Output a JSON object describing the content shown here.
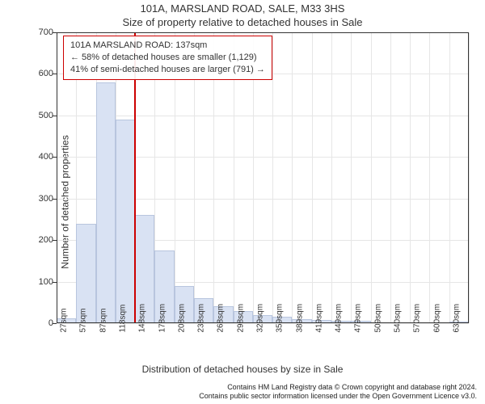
{
  "title_main": "101A, MARSLAND ROAD, SALE, M33 3HS",
  "title_sub": "Size of property relative to detached houses in Sale",
  "ylabel": "Number of detached properties",
  "xlabel": "Distribution of detached houses by size in Sale",
  "footer_line1": "Contains HM Land Registry data © Crown copyright and database right 2024.",
  "footer_line2": "Contains public sector information licensed under the Open Government Licence v3.0.",
  "chart": {
    "type": "histogram",
    "ylim": [
      0,
      700
    ],
    "ytick_step": 100,
    "yticks": [
      0,
      100,
      200,
      300,
      400,
      500,
      600,
      700
    ],
    "xticks": [
      "27sqm",
      "57sqm",
      "87sqm",
      "118sqm",
      "148sqm",
      "178sqm",
      "208sqm",
      "238sqm",
      "268sqm",
      "298sqm",
      "329sqm",
      "359sqm",
      "389sqm",
      "419sqm",
      "449sqm",
      "479sqm",
      "509sqm",
      "540sqm",
      "570sqm",
      "600sqm",
      "630sqm"
    ],
    "values": [
      12,
      240,
      580,
      490,
      260,
      175,
      90,
      60,
      40,
      30,
      20,
      15,
      10,
      8,
      6,
      5,
      2,
      0,
      0,
      0,
      3
    ],
    "bar_fill": "#d9e2f3",
    "bar_stroke": "#b8c5de",
    "bar_width_ratio": 1.0,
    "background_color": "#ffffff",
    "grid_color": "#e6e6e6",
    "axis_color": "#333333",
    "marker_index": 4,
    "marker_color": "#cc0000",
    "annotation": {
      "border_color": "#cc0000",
      "lines": [
        "101A MARSLAND ROAD: 137sqm",
        "← 58% of detached houses are smaller (1,129)",
        "41% of semi-detached houses are larger (791) →"
      ]
    },
    "title_fontsize": 13,
    "label_fontsize": 12,
    "tick_fontsize": 11
  }
}
